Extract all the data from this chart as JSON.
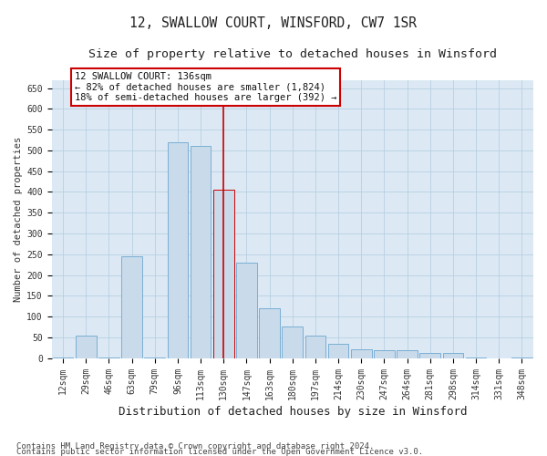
{
  "title": "12, SWALLOW COURT, WINSFORD, CW7 1SR",
  "subtitle": "Size of property relative to detached houses in Winsford",
  "xlabel": "Distribution of detached houses by size in Winsford",
  "ylabel": "Number of detached properties",
  "categories": [
    "12sqm",
    "29sqm",
    "46sqm",
    "63sqm",
    "79sqm",
    "96sqm",
    "113sqm",
    "130sqm",
    "147sqm",
    "163sqm",
    "180sqm",
    "197sqm",
    "214sqm",
    "230sqm",
    "247sqm",
    "264sqm",
    "281sqm",
    "298sqm",
    "314sqm",
    "331sqm",
    "348sqm"
  ],
  "values": [
    2,
    55,
    2,
    245,
    2,
    520,
    510,
    405,
    230,
    120,
    75,
    55,
    35,
    20,
    18,
    18,
    12,
    12,
    2,
    0,
    2
  ],
  "bar_color": "#c9daea",
  "bar_edge_color": "#7bafd4",
  "highlight_index": 7,
  "highlight_edge_color": "#cc0000",
  "vline_color": "#cc0000",
  "annotation_text": "12 SWALLOW COURT: 136sqm\n← 82% of detached houses are smaller (1,824)\n18% of semi-detached houses are larger (392) →",
  "annotation_box_color": "#ffffff",
  "annotation_box_edge_color": "#cc0000",
  "ylim": [
    0,
    670
  ],
  "yticks": [
    0,
    50,
    100,
    150,
    200,
    250,
    300,
    350,
    400,
    450,
    500,
    550,
    600,
    650
  ],
  "footer1": "Contains HM Land Registry data © Crown copyright and database right 2024.",
  "footer2": "Contains public sector information licensed under the Open Government Licence v3.0.",
  "bg_color": "#ffffff",
  "plot_bg_color": "#dce9f5",
  "grid_color": "#b8cfe0",
  "title_fontsize": 10.5,
  "subtitle_fontsize": 9.5,
  "xlabel_fontsize": 9,
  "ylabel_fontsize": 7.5,
  "tick_fontsize": 7,
  "annot_fontsize": 7.5,
  "footer_fontsize": 6.5
}
